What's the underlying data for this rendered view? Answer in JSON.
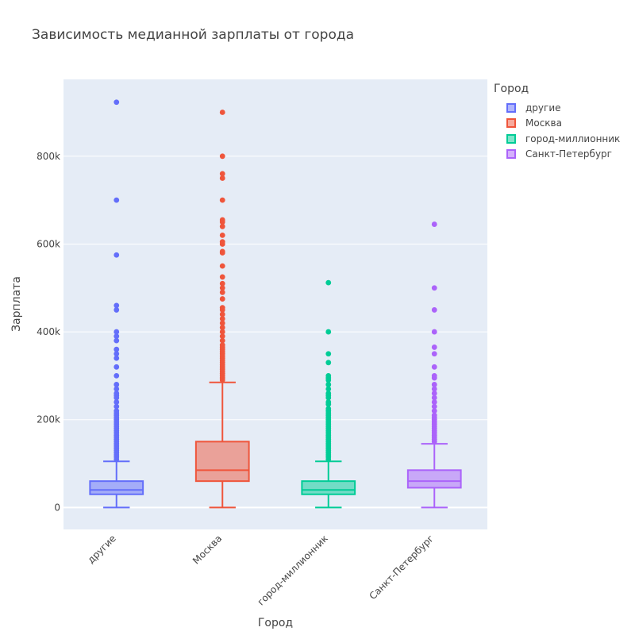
{
  "chart_data": {
    "type": "box",
    "title": "Зависимость медианной зарплаты от города",
    "xlabel": "Город",
    "ylabel": "Зарплата",
    "categories": [
      "другие",
      "Москва",
      "город-миллионник",
      "Санкт-Петербург"
    ],
    "ylim": [
      -50000,
      975000
    ],
    "yticks": [
      0,
      200000,
      400000,
      600000,
      800000
    ],
    "ytick_labels": [
      "0",
      "200k",
      "400k",
      "600k",
      "800k"
    ],
    "grid": true,
    "legend_title": "Город",
    "legend_position": "top-right",
    "series": [
      {
        "name": "другие",
        "color": "#636efa",
        "fill": "rgba(99,110,250,0.5)",
        "min": 0,
        "q1": 30000,
        "median": 40000,
        "q3": 60000,
        "upper_fence": 105000,
        "outliers": [
          110000,
          115000,
          120000,
          125000,
          130000,
          135000,
          140000,
          145000,
          150000,
          155000,
          160000,
          165000,
          170000,
          175000,
          180000,
          185000,
          190000,
          195000,
          200000,
          205000,
          210000,
          215000,
          220000,
          230000,
          240000,
          250000,
          255000,
          260000,
          270000,
          280000,
          300000,
          320000,
          340000,
          350000,
          360000,
          380000,
          390000,
          400000,
          450000,
          460000,
          575000,
          700000,
          923000
        ]
      },
      {
        "name": "Москва",
        "color": "#ef553b",
        "fill": "rgba(239,85,59,0.5)",
        "min": 0,
        "q1": 60000,
        "median": 85000,
        "q3": 150000,
        "upper_fence": 285000,
        "outliers": [
          290000,
          295000,
          300000,
          305000,
          310000,
          315000,
          320000,
          325000,
          330000,
          335000,
          340000,
          345000,
          350000,
          355000,
          360000,
          365000,
          370000,
          380000,
          390000,
          400000,
          410000,
          420000,
          430000,
          440000,
          450000,
          455000,
          475000,
          490000,
          500000,
          510000,
          525000,
          550000,
          580000,
          583000,
          600000,
          605000,
          620000,
          640000,
          650000,
          655000,
          700000,
          750000,
          760000,
          800000,
          900000
        ]
      },
      {
        "name": "город-миллионник",
        "color": "#00cc96",
        "fill": "rgba(0,204,150,0.5)",
        "min": 0,
        "q1": 30000,
        "median": 40000,
        "q3": 60000,
        "upper_fence": 105000,
        "outliers": [
          110000,
          115000,
          120000,
          125000,
          130000,
          135000,
          140000,
          145000,
          150000,
          155000,
          160000,
          165000,
          170000,
          175000,
          180000,
          185000,
          190000,
          195000,
          200000,
          205000,
          210000,
          215000,
          220000,
          225000,
          235000,
          240000,
          250000,
          255000,
          260000,
          270000,
          280000,
          290000,
          295000,
          300000,
          330000,
          350000,
          400000,
          512000
        ]
      },
      {
        "name": "Санкт-Петербург",
        "color": "#ab63fa",
        "fill": "rgba(171,99,250,0.5)",
        "min": 0,
        "q1": 45000,
        "median": 60000,
        "q3": 85000,
        "upper_fence": 145000,
        "outliers": [
          150000,
          155000,
          160000,
          165000,
          170000,
          175000,
          180000,
          185000,
          190000,
          195000,
          200000,
          205000,
          210000,
          220000,
          230000,
          240000,
          250000,
          260000,
          270000,
          280000,
          295000,
          300000,
          320000,
          350000,
          365000,
          400000,
          450000,
          500000,
          645000
        ]
      }
    ]
  }
}
